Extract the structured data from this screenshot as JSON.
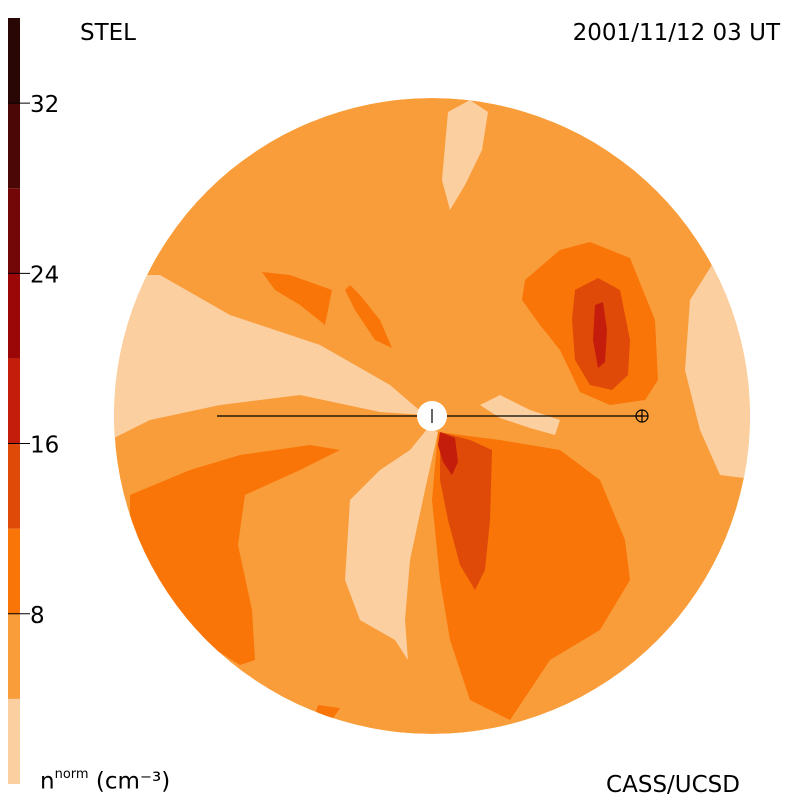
{
  "header": {
    "title": "STEL",
    "timestamp": "2001/11/12 03 UT"
  },
  "footer": {
    "credit": "CASS/UCSD",
    "unit_main": "n",
    "unit_sup": "norm",
    "unit_rest": "(cm⁻³)"
  },
  "chart_data": {
    "type": "heatmap",
    "title": "",
    "xlabel": "",
    "ylabel": "",
    "colorbar": {
      "label": "n^norm (cm^-3)",
      "range": [
        0,
        36
      ],
      "levels": [
        0,
        4,
        8,
        12,
        16,
        20,
        24,
        28,
        32,
        36
      ],
      "colors": [
        "#fccfa0",
        "#f99d3a",
        "#f97508",
        "#e04a09",
        "#c41d0b",
        "#9b0707",
        "#730708",
        "#4a0706",
        "#280704"
      ],
      "ticks": [
        8,
        16,
        24,
        32
      ],
      "tick_labels": [
        "8",
        "16",
        "24",
        "32"
      ]
    },
    "markers": {
      "sun": "center",
      "earth": "right of sun on horizontal line"
    }
  }
}
